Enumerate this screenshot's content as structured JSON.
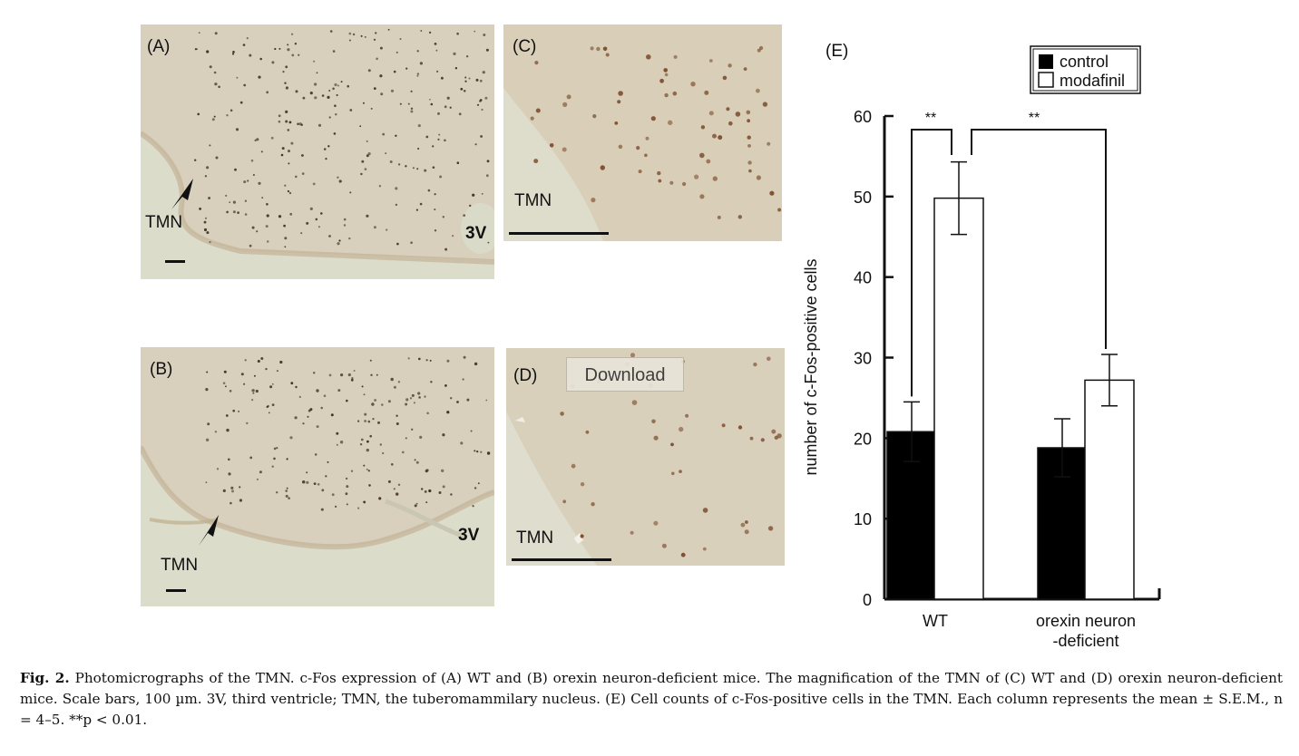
{
  "panels": {
    "A": {
      "label": "(A)",
      "tmn": "TMN",
      "third_ventricle": "3V"
    },
    "B": {
      "label": "(B)",
      "tmn": "TMN",
      "third_ventricle": "3V"
    },
    "C": {
      "label": "(C)",
      "tmn": "TMN"
    },
    "D": {
      "label": "(D)",
      "tmn": "TMN"
    }
  },
  "download_label": "Download",
  "chart_data": {
    "type": "bar",
    "panel_label": "(E)",
    "categories": [
      "WT",
      "orexin neuron\n-deficient"
    ],
    "series": [
      {
        "name": "control",
        "values": [
          20.8,
          18.8
        ],
        "errors": [
          3.7,
          3.6
        ],
        "color": "#000000"
      },
      {
        "name": "modafinil",
        "values": [
          49.8,
          27.2
        ],
        "errors": [
          4.5,
          3.2
        ],
        "color": "#ffffff"
      }
    ],
    "ylabel": "number of c-Fos-positive cells",
    "ylim": [
      0,
      60
    ],
    "yticks": [
      0,
      10,
      20,
      30,
      40,
      50,
      60
    ],
    "legend_placement": "top-right",
    "significance": [
      "**",
      "**"
    ]
  },
  "caption": {
    "fig_label": "Fig. 2.",
    "text": "Photomicrographs of the TMN. c-Fos expression of (A) WT and (B) orexin neuron-deficient mice. The magnification of the TMN of (C) WT and (D) orexin neuron-deficient mice. Scale bars, 100 µm. 3V, third ventricle; TMN, the tuberomammilary nucleus. (E) Cell counts of c-Fos-positive cells in the TMN. Each column represents the mean ± S.E.M., n = 4–5. **p < 0.01."
  }
}
